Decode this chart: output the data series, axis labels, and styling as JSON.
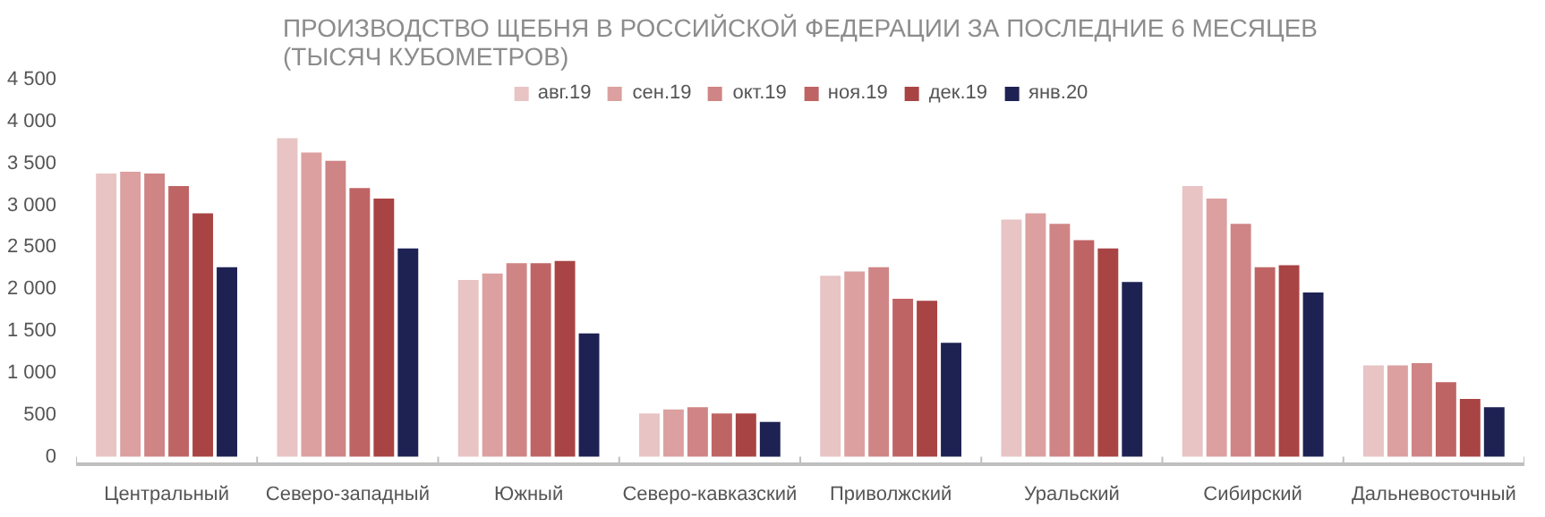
{
  "chart_data": {
    "type": "bar",
    "title": "ПРОИЗВОДСТВО ЩЕБНЯ В РОССИЙСКОЙ ФЕДЕРАЦИИ ЗА ПОСЛЕДНИЕ 6 МЕСЯЦЕВ\n(ТЫСЯЧ КУБОМЕТРОВ)",
    "categories": [
      "Центральный",
      "Северо-западный",
      "Южный",
      "Северо-кавказский",
      "Приволжский",
      "Уральский",
      "Сибирский",
      "Дальневосточный"
    ],
    "series": [
      {
        "name": "авг.19",
        "color": "#e8c4c4",
        "values": [
          3380,
          3800,
          2110,
          515,
          2160,
          2830,
          3230,
          1090
        ]
      },
      {
        "name": "сен.19",
        "color": "#dca0a0",
        "values": [
          3400,
          3630,
          2185,
          565,
          2210,
          2905,
          3080,
          1090
        ]
      },
      {
        "name": "окт.19",
        "color": "#cf8585",
        "values": [
          3380,
          3530,
          2310,
          590,
          2260,
          2780,
          2780,
          1115
        ]
      },
      {
        "name": "ноя.19",
        "color": "#bf6464",
        "values": [
          3230,
          3205,
          2310,
          515,
          1885,
          2585,
          2260,
          890
        ]
      },
      {
        "name": "дек.19",
        "color": "#a94444",
        "values": [
          2905,
          3080,
          2335,
          515,
          1860,
          2485,
          2285,
          690
        ]
      },
      {
        "name": "янв.20",
        "color": "#1e2253",
        "values": [
          2260,
          2485,
          1470,
          415,
          1360,
          2085,
          1960,
          590
        ]
      }
    ],
    "ylim": [
      0,
      4500
    ],
    "yticks": [
      0,
      500,
      {
        "value": 1000,
        "label": "1 000"
      },
      {
        "value": 1500,
        "label": "1 500"
      },
      {
        "value": 2000,
        "label": "2 000"
      },
      {
        "value": 2500,
        "label": "2 500"
      },
      {
        "value": 3000,
        "label": "3 000"
      },
      {
        "value": 3500,
        "label": "3 500"
      },
      {
        "value": 4000,
        "label": "4 000"
      },
      {
        "value": 4500,
        "label": "4 500"
      }
    ],
    "legend": "top",
    "grid": false
  }
}
